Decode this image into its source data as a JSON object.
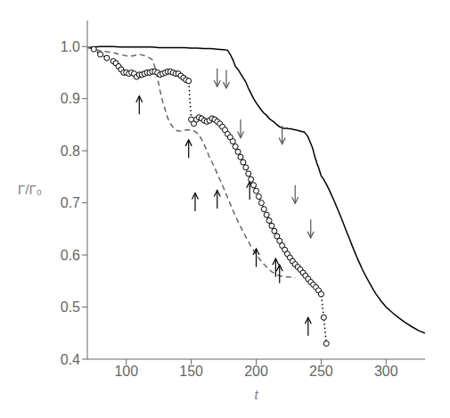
{
  "chart_data": {
    "type": "line",
    "xlabel": "t",
    "ylabel": "Γ/Γ₀",
    "xlim": [
      70,
      330
    ],
    "ylim": [
      0.4,
      1.05
    ],
    "xticks": [
      100,
      150,
      200,
      250,
      300
    ],
    "yticks": [
      0.4,
      0.5,
      0.6,
      0.7,
      0.8,
      0.9,
      {
        "value": 1,
        "label": "1.0"
      }
    ],
    "grid": false,
    "series": [
      {
        "color": "#000000",
        "line_style": "solid",
        "x": [
          70,
          75,
          80,
          85,
          90,
          95,
          100,
          105,
          110,
          115,
          120,
          125,
          130,
          135,
          140,
          145,
          150,
          155,
          160,
          165,
          170,
          175,
          178,
          180,
          182,
          184,
          186,
          188,
          190,
          192,
          194,
          196,
          198,
          200,
          202,
          204,
          206,
          208,
          210,
          212,
          214,
          215,
          216,
          217,
          218,
          219,
          220,
          221,
          222,
          223,
          224,
          225,
          226,
          227,
          228,
          229,
          230,
          231,
          232,
          233,
          234,
          235,
          236,
          237,
          238,
          239,
          240,
          241,
          242,
          243,
          244,
          245,
          246,
          247,
          248,
          249,
          250,
          252,
          254,
          256,
          258,
          260,
          262,
          264,
          266,
          268,
          270,
          272,
          274,
          276,
          278,
          280,
          282,
          284,
          286,
          288,
          290,
          292,
          294,
          296,
          298,
          300,
          305,
          310,
          315,
          320,
          325,
          330
        ],
        "values": [
          0.998,
          0.999,
          1.0,
          1.0,
          1.0,
          0.999,
          0.999,
          0.999,
          0.999,
          0.999,
          0.999,
          0.998,
          0.998,
          0.998,
          0.998,
          0.998,
          0.997,
          0.997,
          0.996,
          0.996,
          0.995,
          0.994,
          0.993,
          0.985,
          0.975,
          0.962,
          0.956,
          0.948,
          0.94,
          0.932,
          0.92,
          0.91,
          0.9,
          0.892,
          0.885,
          0.878,
          0.872,
          0.868,
          0.862,
          0.858,
          0.855,
          0.852,
          0.85,
          0.848,
          0.846,
          0.845,
          0.844,
          0.843,
          0.843,
          0.843,
          0.843,
          0.842,
          0.842,
          0.842,
          0.841,
          0.841,
          0.84,
          0.84,
          0.839,
          0.838,
          0.838,
          0.837,
          0.836,
          0.836,
          0.833,
          0.83,
          0.826,
          0.82,
          0.814,
          0.808,
          0.8,
          0.79,
          0.782,
          0.774,
          0.768,
          0.76,
          0.752,
          0.745,
          0.736,
          0.726,
          0.715,
          0.704,
          0.692,
          0.68,
          0.668,
          0.655,
          0.642,
          0.63,
          0.617,
          0.605,
          0.593,
          0.582,
          0.571,
          0.561,
          0.552,
          0.543,
          0.534,
          0.526,
          0.519,
          0.512,
          0.506,
          0.5,
          0.489,
          0.479,
          0.47,
          0.462,
          0.455,
          0.45
        ]
      },
      {
        "color": "#666666",
        "line_style": "dashed",
        "x": [
          70,
          75,
          80,
          85,
          90,
          95,
          100,
          105,
          110,
          115,
          120,
          122,
          124,
          126,
          128,
          130,
          132,
          134,
          136,
          138,
          140,
          142,
          144,
          146,
          148,
          150,
          152,
          154,
          156,
          158,
          160,
          162,
          164,
          166,
          168,
          170,
          172,
          174,
          176,
          178,
          180,
          182,
          184,
          186,
          188,
          190,
          192,
          194,
          196,
          198,
          200,
          202,
          204,
          206,
          208,
          210,
          212,
          214,
          216,
          218,
          220,
          222,
          224,
          226,
          228,
          230
        ],
        "values": [
          0.998,
          0.995,
          0.992,
          0.99,
          0.988,
          0.985,
          0.982,
          0.982,
          0.985,
          0.982,
          0.975,
          0.96,
          0.94,
          0.915,
          0.895,
          0.878,
          0.862,
          0.852,
          0.845,
          0.84,
          0.838,
          0.838,
          0.838,
          0.84,
          0.84,
          0.84,
          0.838,
          0.835,
          0.83,
          0.822,
          0.812,
          0.8,
          0.788,
          0.778,
          0.768,
          0.756,
          0.745,
          0.734,
          0.722,
          0.71,
          0.698,
          0.686,
          0.675,
          0.664,
          0.654,
          0.644,
          0.635,
          0.626,
          0.617,
          0.609,
          0.601,
          0.594,
          0.588,
          0.582,
          0.577,
          0.572,
          0.568,
          0.565,
          0.562,
          0.56,
          0.559,
          0.558,
          0.558,
          0.558,
          0.557,
          0.556
        ]
      },
      {
        "color": "#000000",
        "line_style": "dotted",
        "marker": "circle",
        "x": [
          75,
          80,
          85,
          90,
          92,
          94,
          96,
          98,
          100,
          102,
          104,
          106,
          108,
          110,
          112,
          114,
          116,
          118,
          120,
          122,
          124,
          126,
          128,
          130,
          132,
          134,
          136,
          138,
          140,
          142,
          144,
          146,
          148,
          150,
          152,
          154,
          156,
          158,
          160,
          162,
          164,
          166,
          168,
          170,
          172,
          174,
          176,
          178,
          180,
          182,
          184,
          186,
          188,
          190,
          192,
          194,
          196,
          198,
          200,
          202,
          204,
          206,
          208,
          210,
          212,
          214,
          216,
          218,
          220,
          222,
          224,
          226,
          228,
          230,
          232,
          234,
          236,
          238,
          240,
          242,
          244,
          246,
          248,
          250,
          252,
          254
        ],
        "values": [
          0.995,
          0.985,
          0.978,
          0.972,
          0.968,
          0.962,
          0.956,
          0.95,
          0.95,
          0.948,
          0.95,
          0.948,
          0.942,
          0.946,
          0.946,
          0.948,
          0.95,
          0.95,
          0.952,
          0.952,
          0.95,
          0.946,
          0.948,
          0.95,
          0.952,
          0.952,
          0.95,
          0.948,
          0.948,
          0.944,
          0.94,
          0.936,
          0.934,
          0.86,
          0.852,
          0.86,
          0.864,
          0.862,
          0.858,
          0.856,
          0.858,
          0.862,
          0.86,
          0.856,
          0.852,
          0.846,
          0.84,
          0.832,
          0.826,
          0.818,
          0.808,
          0.798,
          0.788,
          0.778,
          0.768,
          0.756,
          0.745,
          0.734,
          0.723,
          0.712,
          0.7,
          0.688,
          0.677,
          0.666,
          0.656,
          0.646,
          0.636,
          0.627,
          0.618,
          0.61,
          0.602,
          0.595,
          0.588,
          0.582,
          0.577,
          0.572,
          0.566,
          0.56,
          0.554,
          0.548,
          0.543,
          0.538,
          0.532,
          0.525,
          0.48,
          0.43
        ]
      }
    ],
    "annotations": [
      {
        "type": "arrow",
        "color": "#000000",
        "from": [
          110,
          0.87
        ],
        "to": [
          110,
          0.905
        ]
      },
      {
        "type": "arrow",
        "color": "#000000",
        "from": [
          148,
          0.786
        ],
        "to": [
          148,
          0.821
        ]
      },
      {
        "type": "arrow",
        "color": "#000000",
        "from": [
          153,
          0.684
        ],
        "to": [
          153,
          0.719
        ]
      },
      {
        "type": "arrow",
        "color": "#000000",
        "from": [
          170,
          0.689
        ],
        "to": [
          170,
          0.724
        ]
      },
      {
        "type": "arrow",
        "color": "#000000",
        "from": [
          195,
          0.706
        ],
        "to": [
          195,
          0.741
        ]
      },
      {
        "type": "arrow",
        "color": "#000000",
        "from": [
          200,
          0.577
        ],
        "to": [
          200,
          0.612
        ]
      },
      {
        "type": "arrow",
        "color": "#000000",
        "from": [
          215,
          0.558
        ],
        "to": [
          215,
          0.593
        ]
      },
      {
        "type": "arrow",
        "color": "#000000",
        "from": [
          218,
          0.546
        ],
        "to": [
          218,
          0.581
        ]
      },
      {
        "type": "arrow",
        "color": "#000000",
        "from": [
          240,
          0.445
        ],
        "to": [
          240,
          0.48
        ]
      },
      {
        "type": "arrow",
        "color": "#555555",
        "from": [
          170,
          0.958
        ],
        "to": [
          170,
          0.923
        ]
      },
      {
        "type": "arrow",
        "color": "#555555",
        "from": [
          177,
          0.955
        ],
        "to": [
          177,
          0.92
        ]
      },
      {
        "type": "arrow",
        "color": "#555555",
        "from": [
          188,
          0.86
        ],
        "to": [
          188,
          0.825
        ]
      },
      {
        "type": "arrow",
        "color": "#555555",
        "from": [
          220,
          0.848
        ],
        "to": [
          220,
          0.813
        ]
      },
      {
        "type": "arrow",
        "color": "#555555",
        "from": [
          230,
          0.734
        ],
        "to": [
          230,
          0.699
        ]
      },
      {
        "type": "arrow",
        "color": "#555555",
        "from": [
          242,
          0.668
        ],
        "to": [
          242,
          0.633
        ]
      }
    ]
  }
}
